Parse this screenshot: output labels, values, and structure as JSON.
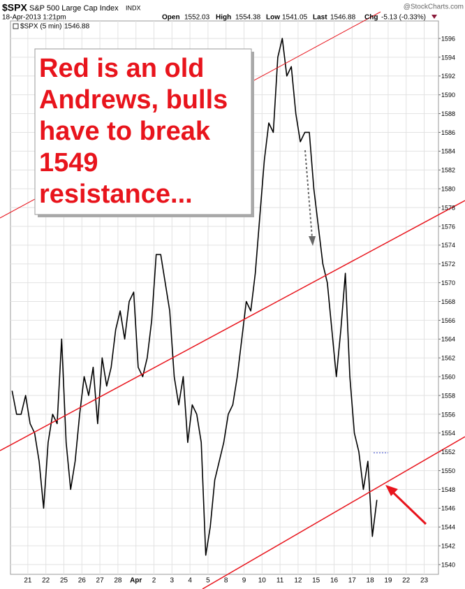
{
  "chart_data": {
    "type": "line",
    "symbol": "$SPX",
    "name": "S&P 500 Large Cap Index",
    "exchange": "INDX",
    "date": "18-Apr-2013 1:21pm",
    "source": "@StockCharts.com",
    "ohlc": [
      {
        "label": "Open",
        "value": 1552.03
      },
      {
        "label": "High",
        "value": 1554.38
      },
      {
        "label": "Low",
        "value": 1541.05
      },
      {
        "label": "Last",
        "value": 1546.88
      },
      {
        "label": "Chg",
        "value": "-5.13 (-0.33%)"
      }
    ],
    "annotation": [
      "Red is an old",
      "Andrews, bulls",
      "have to break",
      "1549",
      "resistance..."
    ],
    "categories": [
      null,
      null,
      null,
      "21",
      null,
      null,
      null,
      "22",
      null,
      null,
      null,
      "25",
      null,
      null,
      null,
      "26",
      null,
      null,
      null,
      "27",
      null,
      null,
      null,
      "28",
      null,
      null,
      null,
      "Apr",
      null,
      null,
      null,
      "2",
      null,
      null,
      null,
      "3",
      null,
      null,
      null,
      "4",
      null,
      null,
      null,
      "5",
      null,
      null,
      null,
      "8",
      null,
      null,
      null,
      "9",
      null,
      null,
      null,
      "10",
      null,
      null,
      null,
      "11",
      null,
      null,
      null,
      "12",
      null,
      null,
      null,
      "15",
      null,
      null,
      null,
      "16",
      null,
      null,
      null,
      "17",
      null,
      null,
      null,
      "18",
      null,
      null,
      null,
      "19",
      null,
      null,
      null,
      "22",
      null,
      null,
      null,
      "23",
      null,
      null
    ],
    "series": [
      {
        "name": "$SPX (5 min)",
        "color": "#000000",
        "values": [
          1558.5,
          1556,
          1556,
          1558,
          1555,
          1554,
          1551,
          1546,
          1553,
          1556,
          1555,
          1564,
          1553,
          1548,
          1551,
          1556,
          1560,
          1558,
          1561,
          1555,
          1562,
          1559,
          1561,
          1565,
          1567,
          1564,
          1568,
          1569,
          1561,
          1560,
          1562,
          1566,
          1573,
          1573,
          1570,
          1567,
          1560,
          1557,
          1560,
          1553,
          1557,
          1556,
          1553,
          1541,
          1544,
          1549,
          1551,
          1553,
          1556,
          1557,
          1560,
          1564,
          1568,
          1567,
          1571,
          1577,
          1583,
          1587,
          1586,
          1594,
          1596,
          1592,
          1593,
          1588,
          1585,
          1586,
          1586,
          1580,
          1576,
          1572,
          1570,
          1565,
          1560,
          1565,
          1571,
          1560,
          1554,
          1552,
          1548,
          1551,
          1543,
          1546.88,
          null,
          null,
          null,
          null,
          null,
          null,
          null,
          null,
          null,
          null,
          null,
          null
        ]
      }
    ],
    "ylim": [
      1539,
      1598
    ],
    "yticks": [
      1540,
      1542,
      1544,
      1546,
      1548,
      1550,
      1552,
      1554,
      1556,
      1558,
      1560,
      1562,
      1564,
      1566,
      1568,
      1570,
      1572,
      1574,
      1576,
      1578,
      1580,
      1582,
      1584,
      1586,
      1588,
      1590,
      1592,
      1594,
      1596
    ],
    "grid": true
  }
}
